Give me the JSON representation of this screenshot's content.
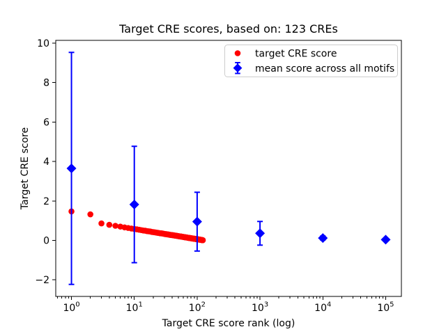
{
  "chart_data": {
    "type": "scatter",
    "title": "Target CRE scores, based on: 123 CREs",
    "xlabel": "Target CRE score rank (log)",
    "ylabel": "Target CRE score",
    "x_scale": "log",
    "xlim_log10": [
      -0.25,
      5.25
    ],
    "ylim": [
      -2.84,
      10.14
    ],
    "x_tick_base": "10",
    "x_tick_exponents": [
      0,
      1,
      2,
      3,
      4,
      5
    ],
    "y_ticks": [
      -2,
      0,
      2,
      4,
      6,
      8,
      10
    ],
    "y_tick_labels": [
      "−2",
      "0",
      "2",
      "4",
      "6",
      "8",
      "10"
    ],
    "grid": false,
    "background_color": "#ffffff",
    "legend": {
      "position": "upper right",
      "frame_border_color": "#cccccc"
    },
    "series": [
      {
        "name": "target CRE score",
        "type": "scatter",
        "marker": "circle",
        "color": "#ff0000",
        "ranks_note": "x value = rank = index + 1 (ranks 1..123)",
        "values": [
          1.47,
          1.32,
          0.86,
          0.79,
          0.74,
          0.7,
          0.66,
          0.63,
          0.6,
          0.58,
          0.56,
          0.54,
          0.52,
          0.5,
          0.49,
          0.47,
          0.46,
          0.45,
          0.43,
          0.42,
          0.41,
          0.4,
          0.39,
          0.38,
          0.37,
          0.36,
          0.36,
          0.35,
          0.34,
          0.33,
          0.32,
          0.32,
          0.31,
          0.3,
          0.3,
          0.29,
          0.28,
          0.28,
          0.27,
          0.27,
          0.26,
          0.26,
          0.25,
          0.25,
          0.24,
          0.24,
          0.23,
          0.23,
          0.22,
          0.22,
          0.21,
          0.21,
          0.2,
          0.2,
          0.2,
          0.19,
          0.19,
          0.18,
          0.18,
          0.18,
          0.17,
          0.17,
          0.16,
          0.16,
          0.16,
          0.15,
          0.15,
          0.15,
          0.14,
          0.14,
          0.14,
          0.13,
          0.13,
          0.13,
          0.12,
          0.12,
          0.12,
          0.12,
          0.11,
          0.11,
          0.11,
          0.1,
          0.1,
          0.1,
          0.1,
          0.09,
          0.09,
          0.09,
          0.09,
          0.08,
          0.08,
          0.08,
          0.08,
          0.07,
          0.07,
          0.07,
          0.07,
          0.06,
          0.06,
          0.06,
          0.06,
          0.06,
          0.05,
          0.05,
          0.05,
          0.05,
          0.04,
          0.04,
          0.04,
          0.04,
          0.04,
          0.03,
          0.03,
          0.03,
          0.03,
          0.03,
          0.02,
          0.02,
          0.02,
          0.02,
          0.02,
          0.01,
          0.01
        ]
      },
      {
        "name": "mean score across all motifs",
        "type": "errorbar",
        "marker": "diamond",
        "color": "#0000ff",
        "x": [
          1,
          10,
          100,
          1000,
          10000,
          100000
        ],
        "means": [
          3.65,
          1.82,
          0.95,
          0.36,
          0.12,
          0.04
        ],
        "std": [
          5.88,
          2.95,
          1.49,
          0.6,
          0.1,
          0.04
        ]
      }
    ]
  }
}
